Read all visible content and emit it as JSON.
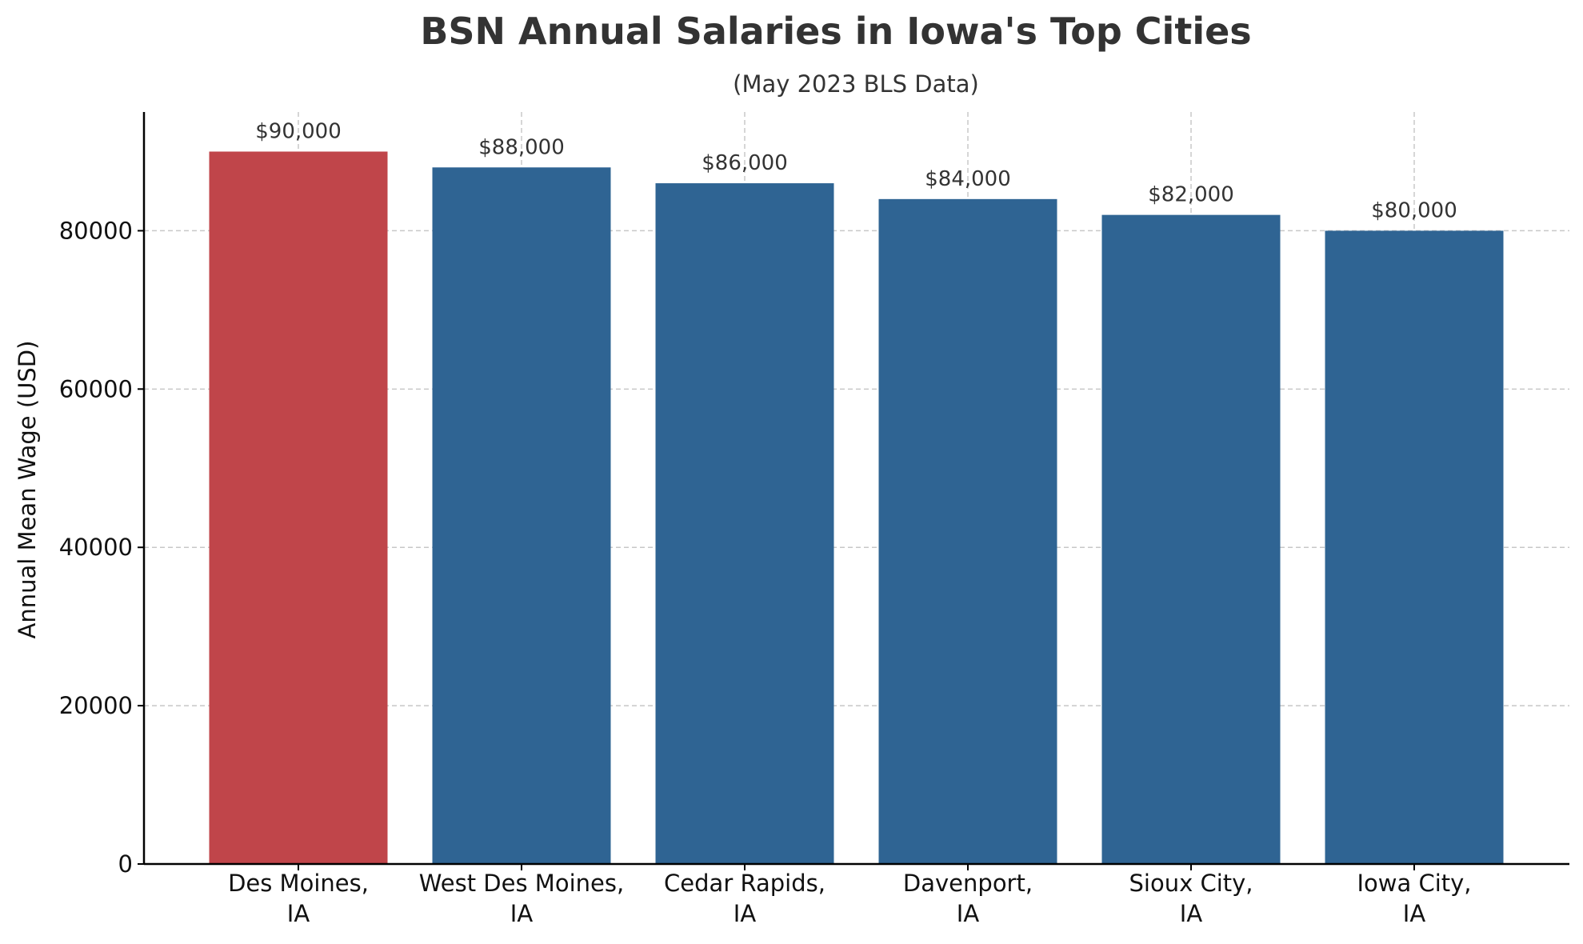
{
  "chart_data": {
    "type": "bar",
    "title": "BSN Annual Salaries in Iowa's Top Cities",
    "subtitle": "(May 2023 BLS Data)",
    "xlabel": "",
    "ylabel": "Annual Mean Wage (USD)",
    "categories": [
      [
        "Des Moines,",
        "IA"
      ],
      [
        "West Des Moines,",
        "IA"
      ],
      [
        "Cedar Rapids,",
        "IA"
      ],
      [
        "Davenport,",
        "IA"
      ],
      [
        "Sioux City,",
        "IA"
      ],
      [
        "Iowa City,",
        "IA"
      ]
    ],
    "values": [
      90000,
      88000,
      86000,
      84000,
      82000,
      80000
    ],
    "data_labels": [
      "$90,000",
      "$88,000",
      "$86,000",
      "$84,000",
      "$82,000",
      "$80,000"
    ],
    "ylim": [
      0,
      95000
    ],
    "yticks": [
      0,
      20000,
      40000,
      60000,
      80000
    ],
    "ytick_labels": [
      "0",
      "20000",
      "40000",
      "60000",
      "80000"
    ],
    "grid": true,
    "colors": {
      "highlight": "#c0454a",
      "bar": "#2f6493",
      "text": "#333333",
      "axis": "#000000",
      "grid": "#c8c8c8"
    },
    "highlight_index": 0
  }
}
